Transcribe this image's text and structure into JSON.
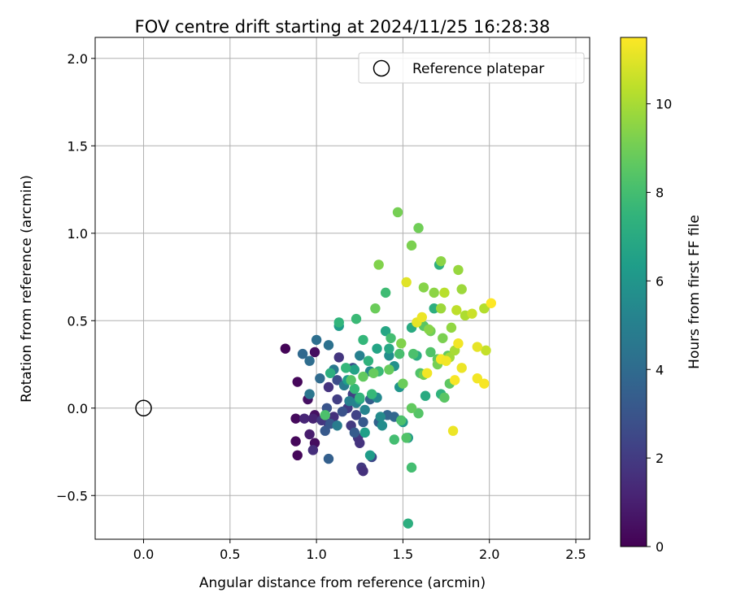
{
  "chart_data": {
    "type": "scatter",
    "title": "FOV centre drift starting at 2024/11/25 16:28:38",
    "xlabel": "Angular distance from reference (arcmin)",
    "ylabel": "Rotation from reference (arcmin)",
    "xlim": [
      -0.28,
      2.58
    ],
    "ylim": [
      -0.75,
      2.12
    ],
    "xticks": [
      0.0,
      0.5,
      1.0,
      1.5,
      2.0,
      2.5
    ],
    "yticks": [
      -0.5,
      0.0,
      0.5,
      1.0,
      1.5,
      2.0
    ],
    "xtick_labels": [
      "0.0",
      "0.5",
      "1.0",
      "1.5",
      "2.0",
      "2.5"
    ],
    "ytick_labels": [
      "−0.5",
      "0.0",
      "0.5",
      "1.0",
      "1.5",
      "2.0"
    ],
    "grid": true,
    "legend": {
      "position": "top-right",
      "label": "Reference platepar"
    },
    "reference_point": {
      "x": 0.0,
      "y": 0.0
    },
    "colorbar": {
      "label": "Hours from first FF file",
      "colormap": "viridis",
      "range": [
        0,
        11.5
      ],
      "ticks": [
        0,
        2,
        4,
        6,
        8,
        10
      ],
      "tick_labels": [
        "0",
        "2",
        "4",
        "6",
        "8",
        "10"
      ]
    },
    "series": [
      {
        "columns": [
          "x",
          "y",
          "hours"
        ],
        "points": [
          [
            0.82,
            0.34,
            0.1
          ],
          [
            0.89,
            0.15,
            0.2
          ],
          [
            0.88,
            -0.06,
            0.3
          ],
          [
            0.88,
            -0.19,
            0.2
          ],
          [
            0.89,
            -0.27,
            0.2
          ],
          [
            0.95,
            0.05,
            0.5
          ],
          [
            0.99,
            0.32,
            0.4
          ],
          [
            0.99,
            -0.04,
            0.5
          ],
          [
            0.99,
            -0.2,
            0.4
          ],
          [
            0.93,
            -0.06,
            1.2
          ],
          [
            0.96,
            -0.15,
            0.9
          ],
          [
            0.98,
            -0.06,
            1.1
          ],
          [
            0.98,
            -0.24,
            1.5
          ],
          [
            1.03,
            -0.07,
            1.8
          ],
          [
            1.07,
            0.12,
            1.7
          ],
          [
            1.07,
            -0.09,
            2.0
          ],
          [
            1.1,
            -0.05,
            1.6
          ],
          [
            1.12,
            0.05,
            2.1
          ],
          [
            1.13,
            0.29,
            1.8
          ],
          [
            1.18,
            0.0,
            2.0
          ],
          [
            1.2,
            -0.1,
            1.9
          ],
          [
            1.21,
            0.08,
            2.2
          ],
          [
            1.23,
            -0.04,
            2.3
          ],
          [
            1.24,
            -0.17,
            1.8
          ],
          [
            1.25,
            -0.2,
            1.7
          ],
          [
            1.26,
            -0.34,
            1.9
          ],
          [
            1.27,
            -0.36,
            1.6
          ],
          [
            1.32,
            -0.28,
            2.5
          ],
          [
            1.12,
            0.16,
            2.7
          ],
          [
            1.21,
            0.23,
            2.8
          ],
          [
            1.15,
            -0.02,
            2.9
          ],
          [
            1.06,
            0.0,
            3.0
          ],
          [
            1.05,
            -0.13,
            3.2
          ],
          [
            1.07,
            -0.29,
            3.5
          ],
          [
            1.08,
            -0.09,
            3.1
          ],
          [
            1.22,
            -0.14,
            3.3
          ],
          [
            1.27,
            -0.08,
            3.2
          ],
          [
            1.31,
            0.05,
            3.4
          ],
          [
            1.36,
            -0.08,
            3.6
          ],
          [
            1.41,
            -0.04,
            3.7
          ],
          [
            1.45,
            -0.05,
            3.8
          ],
          [
            0.92,
            0.31,
            3.9
          ],
          [
            0.96,
            0.27,
            4.1
          ],
          [
            1.0,
            0.39,
            4.2
          ],
          [
            1.02,
            0.17,
            4.0
          ],
          [
            1.07,
            0.36,
            4.3
          ],
          [
            0.96,
            0.08,
            4.5
          ],
          [
            1.1,
            0.22,
            4.6
          ],
          [
            1.12,
            -0.1,
            4.8
          ],
          [
            1.16,
            0.13,
            4.7
          ],
          [
            1.19,
            0.04,
            5.0
          ],
          [
            1.23,
            0.03,
            5.1
          ],
          [
            1.25,
            0.3,
            5.0
          ],
          [
            1.28,
            -0.01,
            5.2
          ],
          [
            1.31,
            0.21,
            5.3
          ],
          [
            1.35,
            0.06,
            5.4
          ],
          [
            1.37,
            -0.05,
            5.5
          ],
          [
            1.38,
            -0.1,
            5.6
          ],
          [
            1.42,
            0.3,
            5.7
          ],
          [
            1.45,
            0.24,
            5.8
          ],
          [
            1.48,
            0.12,
            6.0
          ],
          [
            1.5,
            -0.08,
            6.1
          ],
          [
            1.53,
            -0.17,
            6.1
          ],
          [
            1.13,
            0.47,
            6.3
          ],
          [
            1.18,
            0.16,
            6.4
          ],
          [
            1.22,
            0.22,
            6.6
          ],
          [
            1.25,
            0.05,
            6.6
          ],
          [
            1.28,
            -0.14,
            6.5
          ],
          [
            1.31,
            -0.27,
            6.3
          ],
          [
            1.35,
            0.34,
            6.7
          ],
          [
            1.4,
            0.44,
            6.8
          ],
          [
            1.42,
            0.34,
            6.9
          ],
          [
            1.55,
            0.46,
            7.0
          ],
          [
            1.58,
            0.3,
            7.1
          ],
          [
            1.63,
            0.07,
            7.0
          ],
          [
            1.68,
            0.57,
            7.2
          ],
          [
            1.71,
            0.82,
            7.3
          ],
          [
            1.72,
            0.08,
            7.4
          ],
          [
            1.08,
            0.2,
            7.2
          ],
          [
            1.13,
            0.49,
            7.5
          ],
          [
            1.17,
            0.23,
            7.6
          ],
          [
            1.22,
            0.11,
            7.7
          ],
          [
            1.23,
            0.51,
            7.8
          ],
          [
            1.25,
            0.06,
            7.5
          ],
          [
            1.27,
            0.39,
            7.6
          ],
          [
            1.3,
            0.27,
            7.4
          ],
          [
            1.32,
            0.08,
            7.7
          ],
          [
            1.36,
            0.21,
            7.8
          ],
          [
            1.4,
            0.66,
            7.9
          ],
          [
            1.43,
            0.4,
            8.0
          ],
          [
            1.45,
            -0.18,
            8.0
          ],
          [
            1.48,
            0.31,
            8.1
          ],
          [
            1.49,
            -0.07,
            8.2
          ],
          [
            1.52,
            -0.17,
            8.3
          ],
          [
            1.55,
            -0.34,
            8.0
          ],
          [
            1.56,
            0.31,
            8.2
          ],
          [
            1.59,
            -0.03,
            8.4
          ],
          [
            1.6,
            0.2,
            8.3
          ],
          [
            1.62,
            0.47,
            8.5
          ],
          [
            1.66,
            0.32,
            8.3
          ],
          [
            1.7,
            0.28,
            8.6
          ],
          [
            1.74,
            0.06,
            8.5
          ],
          [
            1.76,
            0.3,
            8.7
          ],
          [
            1.77,
            0.14,
            8.6
          ],
          [
            1.53,
            -0.66,
            7.2
          ],
          [
            1.05,
            -0.04,
            8.2
          ],
          [
            1.2,
            0.16,
            8.4
          ],
          [
            1.27,
            0.18,
            8.7
          ],
          [
            1.33,
            0.2,
            8.8
          ],
          [
            1.34,
            0.57,
            8.9
          ],
          [
            1.42,
            0.22,
            8.8
          ],
          [
            1.5,
            0.14,
            8.9
          ],
          [
            1.55,
            0.0,
            8.7
          ],
          [
            1.62,
            0.19,
            9.0
          ],
          [
            1.66,
            0.44,
            9.0
          ],
          [
            1.7,
            0.25,
            9.1
          ],
          [
            1.73,
            0.4,
            9.2
          ],
          [
            1.47,
            1.12,
            9.1
          ],
          [
            1.55,
            0.93,
            9.2
          ],
          [
            1.59,
            1.03,
            9.0
          ],
          [
            1.36,
            0.82,
            9.3
          ],
          [
            1.49,
            0.37,
            9.3
          ],
          [
            1.62,
            0.69,
            9.4
          ],
          [
            1.65,
            0.45,
            9.4
          ],
          [
            1.68,
            0.66,
            9.5
          ],
          [
            1.72,
            0.84,
            9.5
          ],
          [
            1.78,
            0.46,
            9.6
          ],
          [
            1.82,
            0.79,
            9.7
          ],
          [
            1.84,
            0.68,
            9.8
          ],
          [
            1.72,
            0.57,
            9.8
          ],
          [
            1.77,
            0.29,
            9.9
          ],
          [
            1.8,
            0.33,
            10.0
          ],
          [
            1.86,
            0.53,
            10.1
          ],
          [
            1.97,
            0.57,
            10.2
          ],
          [
            1.74,
            0.66,
            10.3
          ],
          [
            1.81,
            0.56,
            10.4
          ],
          [
            1.98,
            0.33,
            10.5
          ],
          [
            1.9,
            0.54,
            10.6
          ],
          [
            1.52,
            0.72,
            11.0
          ],
          [
            1.58,
            0.49,
            11.1
          ],
          [
            1.61,
            0.52,
            11.2
          ],
          [
            1.64,
            0.2,
            11.3
          ],
          [
            1.72,
            0.28,
            11.4
          ],
          [
            1.75,
            0.27,
            11.3
          ],
          [
            1.79,
            -0.13,
            11.2
          ],
          [
            1.8,
            0.16,
            11.4
          ],
          [
            1.82,
            0.37,
            11.3
          ],
          [
            1.84,
            0.23,
            11.2
          ],
          [
            1.93,
            0.35,
            11.1
          ],
          [
            1.93,
            0.17,
            11.3
          ],
          [
            1.97,
            0.14,
            11.4
          ],
          [
            2.01,
            0.6,
            11.5
          ]
        ]
      }
    ]
  }
}
